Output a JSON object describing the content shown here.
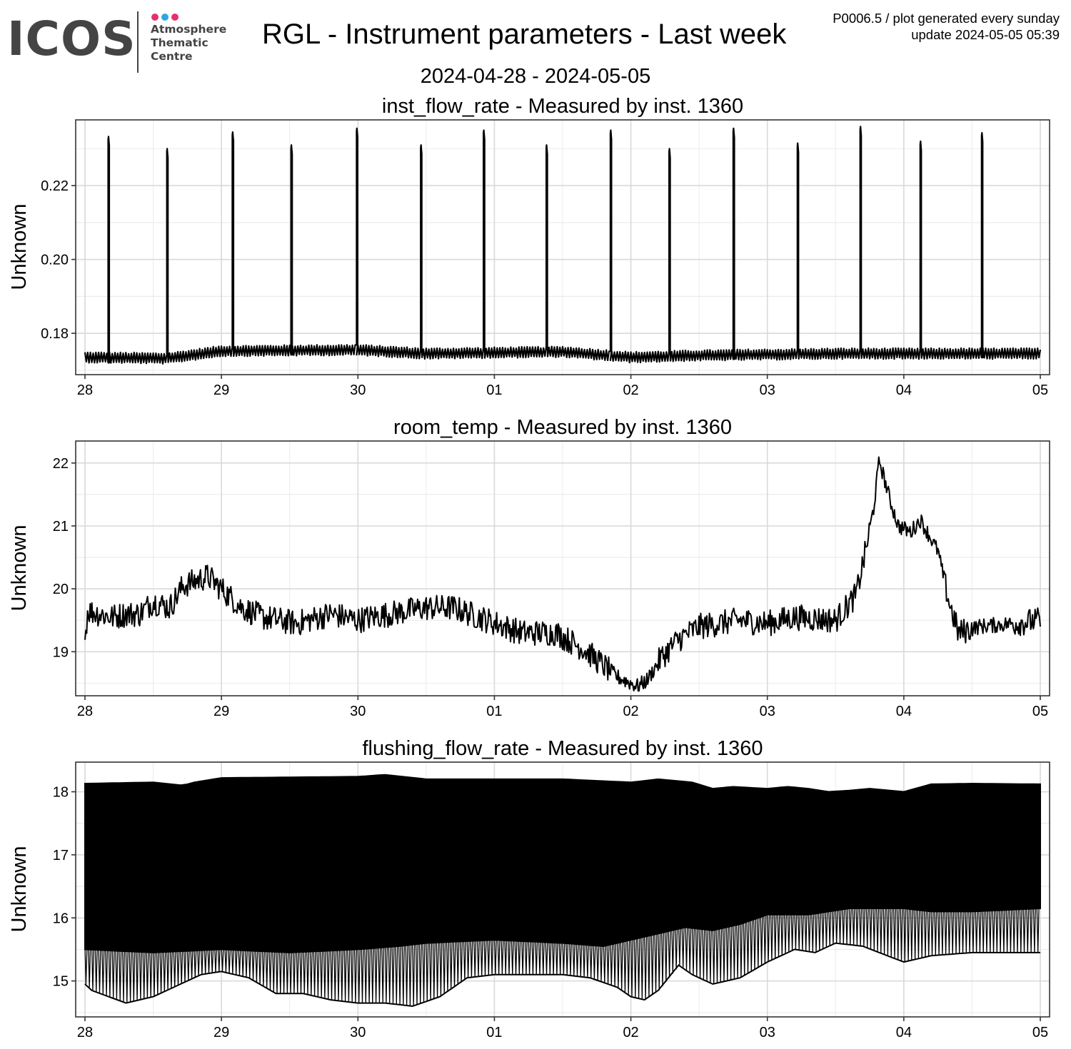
{
  "header": {
    "logo_word": "ICOS",
    "logo_lines": [
      "Atmosphere",
      "Thematic",
      "Centre"
    ],
    "logo_dot_colors": [
      "#e6316e",
      "#2ea7e0",
      "#e6316e"
    ],
    "title": "RGL - Instrument parameters - Last week",
    "date_range": "2024-04-28 - 2024-05-05",
    "meta_line1": "P0006.5 / plot generated every sunday",
    "meta_line2": "update  2024-05-05 05:39"
  },
  "chart_data": [
    {
      "type": "line",
      "title": "inst_flow_rate - Measured by inst. 1360",
      "ylabel": "Unknown",
      "xlabel": "",
      "x_ticks": [
        "28",
        "29",
        "30",
        "01",
        "02",
        "03",
        "04",
        "05"
      ],
      "xlim_days": [
        0,
        7
      ],
      "ylim": [
        0.1688,
        0.2378
      ],
      "y_ticks": [
        0.18,
        0.2,
        0.22
      ],
      "y_tick_labels": [
        "0.18",
        "0.20",
        "0.22"
      ],
      "grid": true,
      "baseline_anchors": [
        [
          0,
          0.1735
        ],
        [
          0.6,
          0.1732
        ],
        [
          1.0,
          0.1752
        ],
        [
          2.0,
          0.1755
        ],
        [
          2.5,
          0.1745
        ],
        [
          3.5,
          0.175
        ],
        [
          4.0,
          0.1735
        ],
        [
          4.5,
          0.174
        ],
        [
          5.5,
          0.1745
        ],
        [
          7.0,
          0.1745
        ]
      ],
      "baseline_amplitude": 0.0015,
      "spikes": [
        {
          "day": 0.17,
          "value": 0.2333
        },
        {
          "day": 0.6,
          "value": 0.23
        },
        {
          "day": 1.08,
          "value": 0.2345
        },
        {
          "day": 1.51,
          "value": 0.231
        },
        {
          "day": 1.99,
          "value": 0.2355
        },
        {
          "day": 2.46,
          "value": 0.231
        },
        {
          "day": 2.92,
          "value": 0.235
        },
        {
          "day": 3.38,
          "value": 0.231
        },
        {
          "day": 3.85,
          "value": 0.235
        },
        {
          "day": 4.28,
          "value": 0.23
        },
        {
          "day": 4.75,
          "value": 0.2355
        },
        {
          "day": 5.22,
          "value": 0.2315
        },
        {
          "day": 5.68,
          "value": 0.236
        },
        {
          "day": 6.12,
          "value": 0.232
        },
        {
          "day": 6.57,
          "value": 0.2343
        }
      ]
    },
    {
      "type": "line",
      "title": "room_temp - Measured by inst. 1360",
      "ylabel": "Unknown",
      "xlabel": "",
      "x_ticks": [
        "28",
        "29",
        "30",
        "01",
        "02",
        "03",
        "04",
        "05"
      ],
      "xlim_days": [
        0,
        7
      ],
      "ylim": [
        18.3,
        22.35
      ],
      "y_ticks": [
        19,
        20,
        21,
        22
      ],
      "y_tick_labels": [
        "19",
        "20",
        "21",
        "22"
      ],
      "grid": true,
      "anchors": [
        [
          0,
          19.2
        ],
        [
          0.02,
          19.65
        ],
        [
          0.2,
          19.55
        ],
        [
          0.3,
          19.6
        ],
        [
          0.4,
          19.6
        ],
        [
          0.5,
          19.8
        ],
        [
          0.62,
          19.7
        ],
        [
          0.72,
          20.05
        ],
        [
          0.9,
          20.2
        ],
        [
          1.0,
          20.0
        ],
        [
          1.15,
          19.7
        ],
        [
          1.3,
          19.55
        ],
        [
          1.55,
          19.45
        ],
        [
          1.8,
          19.6
        ],
        [
          2.0,
          19.5
        ],
        [
          2.1,
          19.55
        ],
        [
          2.5,
          19.7
        ],
        [
          2.7,
          19.7
        ],
        [
          2.95,
          19.5
        ],
        [
          3.2,
          19.3
        ],
        [
          3.45,
          19.3
        ],
        [
          3.65,
          19.05
        ],
        [
          3.9,
          18.6
        ],
        [
          4.05,
          18.45
        ],
        [
          4.12,
          18.55
        ],
        [
          4.22,
          18.9
        ],
        [
          4.35,
          19.2
        ],
        [
          4.5,
          19.4
        ],
        [
          4.8,
          19.5
        ],
        [
          5.0,
          19.45
        ],
        [
          5.2,
          19.55
        ],
        [
          5.5,
          19.5
        ],
        [
          5.65,
          19.9
        ],
        [
          5.72,
          20.6
        ],
        [
          5.78,
          21.3
        ],
        [
          5.82,
          22.05
        ],
        [
          5.9,
          21.4
        ],
        [
          5.96,
          21.0
        ],
        [
          6.05,
          20.9
        ],
        [
          6.12,
          21.1
        ],
        [
          6.25,
          20.6
        ],
        [
          6.33,
          19.8
        ],
        [
          6.4,
          19.3
        ],
        [
          6.55,
          19.4
        ],
        [
          6.8,
          19.45
        ],
        [
          7.0,
          19.5
        ]
      ],
      "noise_amplitude": 0.13
    },
    {
      "type": "area",
      "title": "flushing_flow_rate - Measured by inst. 1360",
      "ylabel": "Unknown",
      "xlabel": "",
      "x_ticks": [
        "28",
        "29",
        "30",
        "01",
        "02",
        "03",
        "04",
        "05"
      ],
      "xlim_days": [
        0,
        7
      ],
      "ylim": [
        14.43,
        18.47
      ],
      "y_ticks": [
        15,
        16,
        17,
        18
      ],
      "y_tick_labels": [
        "15",
        "16",
        "17",
        "18"
      ],
      "grid": true,
      "upper_envelope": [
        [
          0,
          18.13
        ],
        [
          0.5,
          18.15
        ],
        [
          0.72,
          18.1
        ],
        [
          0.8,
          18.15
        ],
        [
          1.0,
          18.22
        ],
        [
          2.0,
          18.24
        ],
        [
          2.2,
          18.27
        ],
        [
          2.5,
          18.2
        ],
        [
          2.8,
          18.2
        ],
        [
          3.5,
          18.2
        ],
        [
          4.0,
          18.15
        ],
        [
          4.2,
          18.2
        ],
        [
          4.45,
          18.15
        ],
        [
          4.6,
          18.05
        ],
        [
          4.75,
          18.08
        ],
        [
          5.0,
          18.05
        ],
        [
          5.15,
          18.08
        ],
        [
          5.3,
          18.05
        ],
        [
          5.45,
          18.0
        ],
        [
          5.6,
          18.02
        ],
        [
          5.75,
          18.05
        ],
        [
          6.0,
          18.0
        ],
        [
          6.2,
          18.12
        ],
        [
          6.5,
          18.13
        ],
        [
          7.0,
          18.12
        ]
      ],
      "dense_lower": [
        [
          0,
          15.5
        ],
        [
          0.5,
          15.45
        ],
        [
          1.0,
          15.5
        ],
        [
          1.5,
          15.45
        ],
        [
          2.0,
          15.5
        ],
        [
          2.3,
          15.55
        ],
        [
          2.5,
          15.6
        ],
        [
          3.0,
          15.65
        ],
        [
          3.5,
          15.6
        ],
        [
          3.8,
          15.55
        ],
        [
          4.0,
          15.65
        ],
        [
          4.2,
          15.75
        ],
        [
          4.4,
          15.85
        ],
        [
          4.6,
          15.8
        ],
        [
          4.8,
          15.9
        ],
        [
          5.0,
          16.05
        ],
        [
          5.3,
          16.05
        ],
        [
          5.6,
          16.15
        ],
        [
          6.0,
          16.15
        ],
        [
          6.2,
          16.1
        ],
        [
          6.5,
          16.1
        ],
        [
          7.0,
          16.15
        ]
      ],
      "lower_envelope": [
        [
          0,
          14.95
        ],
        [
          0.05,
          14.85
        ],
        [
          0.3,
          14.65
        ],
        [
          0.5,
          14.75
        ],
        [
          0.7,
          14.95
        ],
        [
          0.85,
          15.1
        ],
        [
          1.0,
          15.15
        ],
        [
          1.2,
          15.05
        ],
        [
          1.4,
          14.8
        ],
        [
          1.6,
          14.8
        ],
        [
          1.8,
          14.7
        ],
        [
          2.0,
          14.65
        ],
        [
          2.2,
          14.65
        ],
        [
          2.4,
          14.6
        ],
        [
          2.6,
          14.75
        ],
        [
          2.8,
          15.05
        ],
        [
          3.0,
          15.1
        ],
        [
          3.5,
          15.1
        ],
        [
          3.7,
          15.05
        ],
        [
          3.9,
          14.9
        ],
        [
          4.0,
          14.75
        ],
        [
          4.1,
          14.7
        ],
        [
          4.2,
          14.85
        ],
        [
          4.35,
          15.25
        ],
        [
          4.45,
          15.1
        ],
        [
          4.6,
          14.95
        ],
        [
          4.8,
          15.05
        ],
        [
          5.0,
          15.3
        ],
        [
          5.2,
          15.5
        ],
        [
          5.35,
          15.45
        ],
        [
          5.5,
          15.6
        ],
        [
          5.7,
          15.55
        ],
        [
          6.0,
          15.3
        ],
        [
          6.2,
          15.4
        ],
        [
          6.5,
          15.45
        ],
        [
          7.0,
          15.45
        ]
      ],
      "oscillation_period_days": 0.025
    }
  ]
}
